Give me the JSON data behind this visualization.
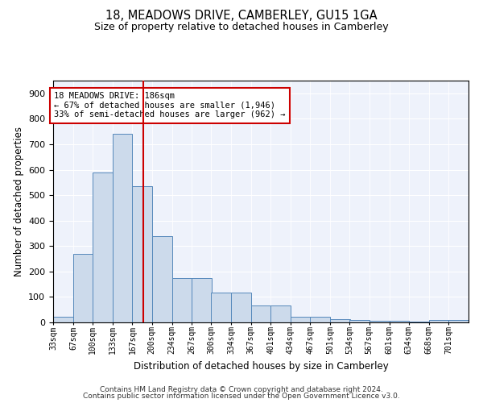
{
  "title1": "18, MEADOWS DRIVE, CAMBERLEY, GU15 1GA",
  "title2": "Size of property relative to detached houses in Camberley",
  "xlabel": "Distribution of detached houses by size in Camberley",
  "ylabel": "Number of detached properties",
  "footer1": "Contains HM Land Registry data © Crown copyright and database right 2024.",
  "footer2": "Contains public sector information licensed under the Open Government Licence v3.0.",
  "annotation_line1": "18 MEADOWS DRIVE: 186sqm",
  "annotation_line2": "← 67% of detached houses are smaller (1,946)",
  "annotation_line3": "33% of semi-detached houses are larger (962) →",
  "property_size": 186,
  "bin_labels": [
    "33sqm",
    "67sqm",
    "100sqm",
    "133sqm",
    "167sqm",
    "200sqm",
    "234sqm",
    "267sqm",
    "300sqm",
    "334sqm",
    "367sqm",
    "401sqm",
    "434sqm",
    "467sqm",
    "501sqm",
    "534sqm",
    "567sqm",
    "601sqm",
    "634sqm",
    "668sqm",
    "701sqm"
  ],
  "bin_edges": [
    33,
    67,
    100,
    133,
    167,
    200,
    234,
    267,
    300,
    334,
    367,
    401,
    434,
    467,
    501,
    534,
    567,
    601,
    634,
    668,
    701
  ],
  "bar_values": [
    22,
    270,
    590,
    740,
    535,
    338,
    175,
    175,
    118,
    118,
    68,
    68,
    22,
    22,
    14,
    10,
    5,
    5,
    2,
    8,
    8
  ],
  "bar_color": "#ccdaeb",
  "bar_edge_color": "#5588bb",
  "vline_color": "#cc0000",
  "bg_color": "#eef2fb",
  "grid_color": "#ffffff",
  "ylim": [
    0,
    950
  ],
  "yticks": [
    0,
    100,
    200,
    300,
    400,
    500,
    600,
    700,
    800,
    900
  ]
}
